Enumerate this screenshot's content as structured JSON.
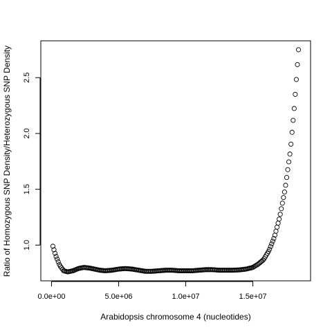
{
  "chart_data": {
    "type": "scatter",
    "title": "",
    "xlabel": "Arabidopsis chromosome 4 (nucleotides)",
    "ylabel": "Ratio of Homozygous SNP Density/Heterozygous SNP Density",
    "xlim": [
      -800000,
      19300000
    ],
    "ylim": [
      0.68,
      2.83
    ],
    "x_ticks": [
      0,
      5000000,
      10000000,
      15000000
    ],
    "x_tick_labels": [
      "0.0e+00",
      "5.0e+06",
      "1.0e+07",
      "1.5e+07"
    ],
    "y_ticks": [
      1.0,
      1.5,
      2.0,
      2.5
    ],
    "y_tick_labels": [
      "1.0",
      "1.5",
      "2.0",
      "2.5"
    ],
    "grid": false,
    "marker": "open-circle",
    "series": [
      {
        "x_start": 100000,
        "x_end": 18400000,
        "n_points": 230,
        "curve_knots": [
          [
            100000,
            0.99
          ],
          [
            300000,
            0.91
          ],
          [
            600000,
            0.82
          ],
          [
            900000,
            0.77
          ],
          [
            1200000,
            0.76
          ],
          [
            1600000,
            0.77
          ],
          [
            2000000,
            0.79
          ],
          [
            2400000,
            0.8
          ],
          [
            2800000,
            0.795
          ],
          [
            3200000,
            0.785
          ],
          [
            3600000,
            0.775
          ],
          [
            4000000,
            0.77
          ],
          [
            4500000,
            0.775
          ],
          [
            5000000,
            0.785
          ],
          [
            5500000,
            0.79
          ],
          [
            6000000,
            0.785
          ],
          [
            6500000,
            0.775
          ],
          [
            7000000,
            0.765
          ],
          [
            7500000,
            0.765
          ],
          [
            8000000,
            0.77
          ],
          [
            8500000,
            0.775
          ],
          [
            9000000,
            0.775
          ],
          [
            9500000,
            0.77
          ],
          [
            10000000,
            0.77
          ],
          [
            10500000,
            0.77
          ],
          [
            11000000,
            0.775
          ],
          [
            11500000,
            0.78
          ],
          [
            12000000,
            0.78
          ],
          [
            12500000,
            0.775
          ],
          [
            13000000,
            0.775
          ],
          [
            13500000,
            0.775
          ],
          [
            14000000,
            0.778
          ],
          [
            14500000,
            0.785
          ],
          [
            15000000,
            0.8
          ],
          [
            15400000,
            0.83
          ],
          [
            15800000,
            0.87
          ],
          [
            16200000,
            0.95
          ],
          [
            16600000,
            1.07
          ],
          [
            17000000,
            1.25
          ],
          [
            17400000,
            1.5
          ],
          [
            17800000,
            1.85
          ],
          [
            18100000,
            2.25
          ],
          [
            18400000,
            2.75
          ]
        ]
      }
    ]
  }
}
